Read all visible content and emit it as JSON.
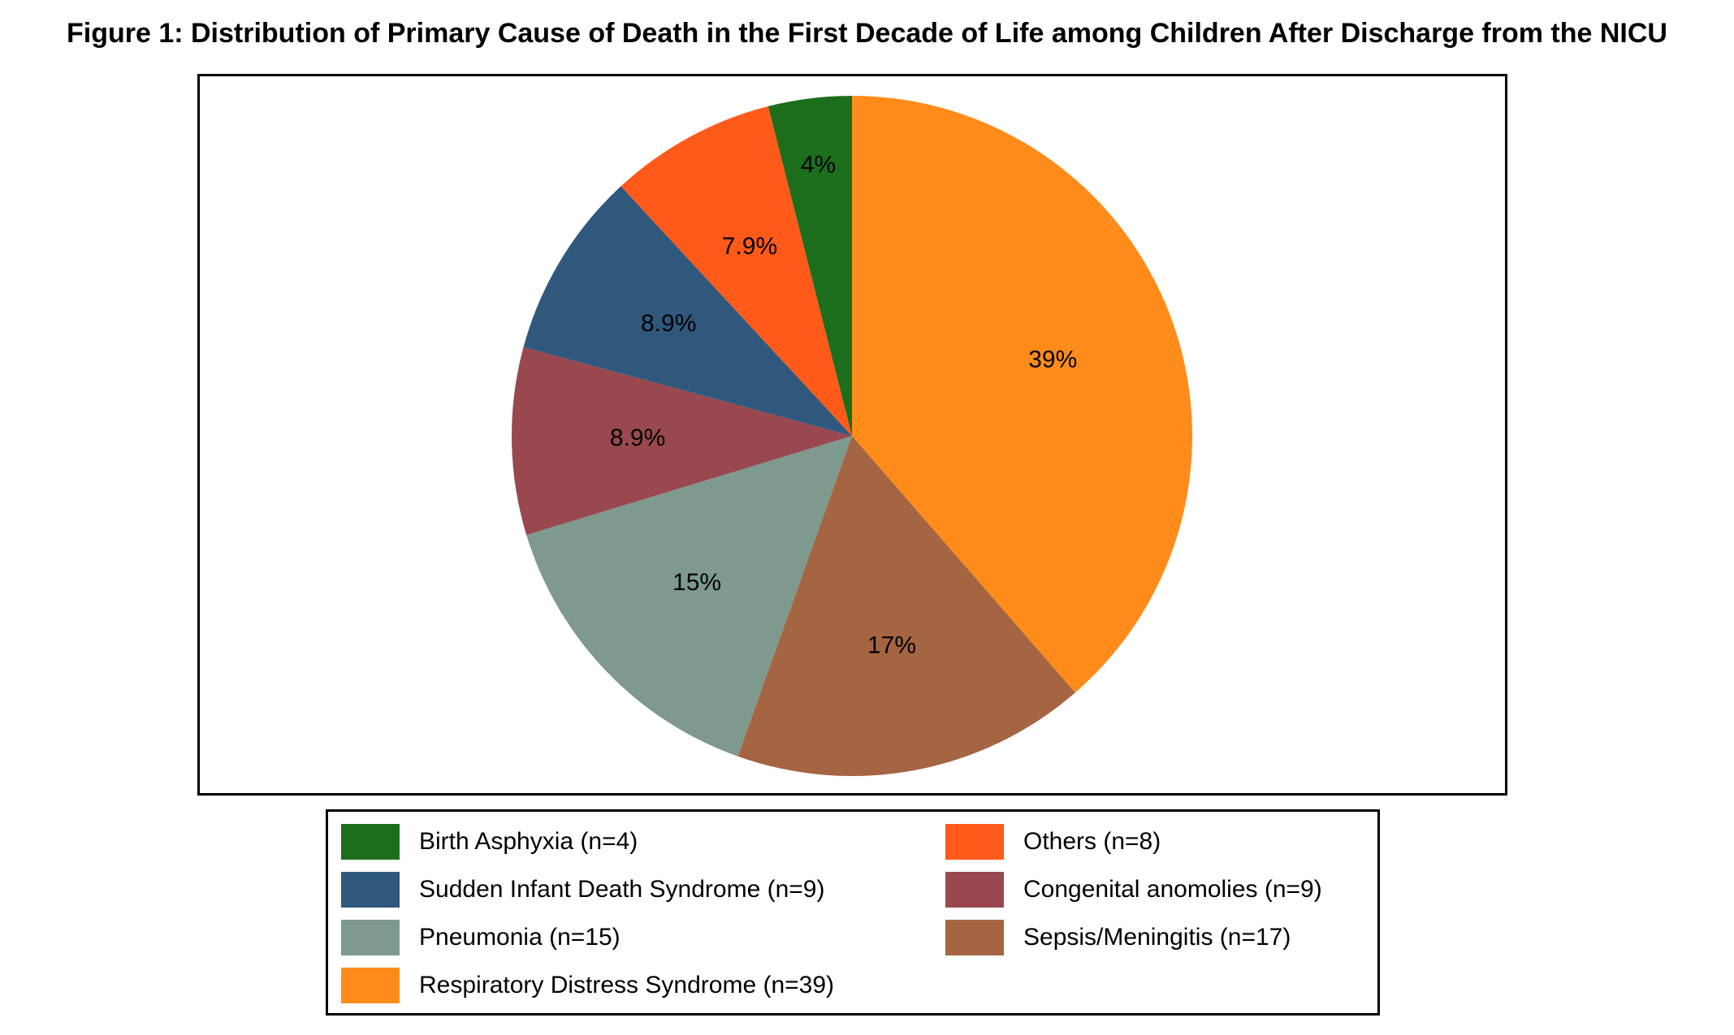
{
  "chart_data": {
    "type": "pie",
    "title": "Figure 1: Distribution of Primary Cause of Death in the First Decade of Life among Children After Discharge from the NICU",
    "start": "top, clockwise",
    "slices": [
      {
        "label": "Respiratory Distress Syndrome (n=39)",
        "value": 39,
        "pct_label": "39%",
        "color": "#FF8C1A"
      },
      {
        "label": "Sepsis/Meningitis (n=17)",
        "value": 17,
        "pct_label": "17%",
        "color": "#A56442"
      },
      {
        "label": "Pneumonia (n=15)",
        "value": 15,
        "pct_label": "15%",
        "color": "#7E998E"
      },
      {
        "label": "Congenital anomolies (n=9)",
        "value": 9,
        "pct_label": "8.9%",
        "color": "#994850"
      },
      {
        "label": "Sudden Infant Death Syndrome (n=9)",
        "value": 9,
        "pct_label": "8.9%",
        "color": "#30587C"
      },
      {
        "label": "Others (n=8)",
        "value": 8,
        "pct_label": "7.9%",
        "color": "#FF5A1A"
      },
      {
        "label": "Birth Asphyxia (n=4)",
        "value": 4,
        "pct_label": "4%",
        "color": "#1C6E1C"
      }
    ],
    "legend_order": [
      "Birth Asphyxia (n=4)",
      "Others (n=8)",
      "Sudden Infant Death Syndrome (n=9)",
      "Congenital anomolies (n=9)",
      "Pneumonia (n=15)",
      "Sepsis/Meningitis (n=17)",
      "Respiratory Distress Syndrome (n=39)"
    ],
    "legend_placement": "bottom"
  }
}
